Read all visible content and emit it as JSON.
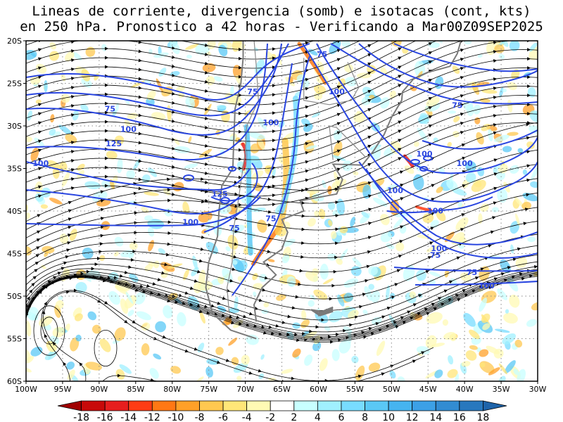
{
  "title": {
    "line1": "Lineas de corriente, divergencia (somb) e isotacas (cont, kts)",
    "line2": "en 250 hPa. Pronostico a 42 horas - Verificando a Mar00Z09SEP2025"
  },
  "map": {
    "lat_labels": [
      "20S",
      "25S",
      "30S",
      "35S",
      "40S",
      "45S",
      "50S",
      "55S",
      "60S"
    ],
    "lon_labels": [
      "100W",
      "95W",
      "90W",
      "85W",
      "80W",
      "75W",
      "70W",
      "65W",
      "60W",
      "55W",
      "50W",
      "45W",
      "40W",
      "35W",
      "30W"
    ],
    "isotach_labels": [
      {
        "text": "75",
        "lon": -59.5,
        "lat": -21.9
      },
      {
        "text": "100",
        "lon": -57.5,
        "lat": -26.3
      },
      {
        "text": "75",
        "lon": -69.0,
        "lat": -26.3
      },
      {
        "text": "75",
        "lon": -41.0,
        "lat": -27.9
      },
      {
        "text": "75",
        "lon": -88.5,
        "lat": -28.3
      },
      {
        "text": "100",
        "lon": -66.5,
        "lat": -29.9
      },
      {
        "text": "100",
        "lon": -86.0,
        "lat": -30.7
      },
      {
        "text": "125",
        "lon": -88.0,
        "lat": -32.4
      },
      {
        "text": "100",
        "lon": -45.5,
        "lat": -33.6
      },
      {
        "text": "100",
        "lon": -98.0,
        "lat": -34.7
      },
      {
        "text": "100",
        "lon": -40.0,
        "lat": -34.7
      },
      {
        "text": "125",
        "lon": -73.5,
        "lat": -38.3
      },
      {
        "text": "100",
        "lon": -49.5,
        "lat": -37.9
      },
      {
        "text": "100",
        "lon": -44.0,
        "lat": -40.3
      },
      {
        "text": "100",
        "lon": -77.5,
        "lat": -41.6
      },
      {
        "text": "75",
        "lon": -66.5,
        "lat": -41.2
      },
      {
        "text": "75",
        "lon": -71.5,
        "lat": -42.3
      },
      {
        "text": "100",
        "lon": -43.5,
        "lat": -44.7
      },
      {
        "text": "75",
        "lon": -44.0,
        "lat": -45.5
      },
      {
        "text": "75",
        "lon": -39.0,
        "lat": -47.5
      },
      {
        "text": "100",
        "lon": -37.0,
        "lat": -49.1
      }
    ]
  },
  "colorbar": {
    "labels": [
      "-18",
      "-16",
      "-14",
      "-12",
      "-10",
      "-8",
      "-6",
      "-4",
      "-2",
      "2",
      "4",
      "6",
      "8",
      "10",
      "12",
      "14",
      "16",
      "18"
    ],
    "colors": [
      "#a00000",
      "#c80a0a",
      "#e61e1e",
      "#ff3c14",
      "#ff7814",
      "#ffa028",
      "#ffc850",
      "#ffe678",
      "#fffab4",
      "#ffffff",
      "#c8ffff",
      "#a0f0ff",
      "#78dcff",
      "#5ac8f5",
      "#46b4f0",
      "#3ca0e6",
      "#328cd2",
      "#2878be",
      "#1e64aa"
    ]
  }
}
